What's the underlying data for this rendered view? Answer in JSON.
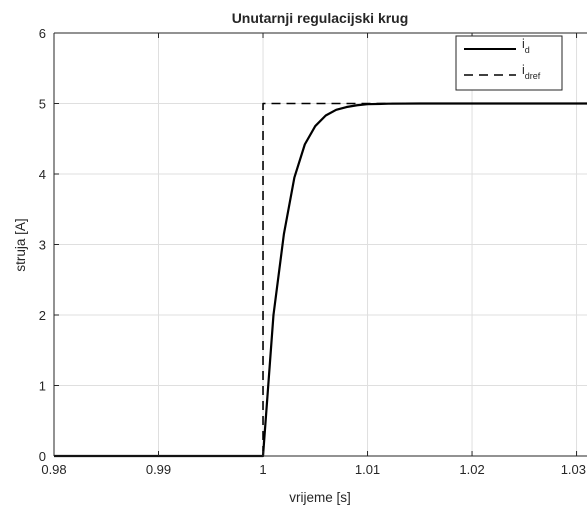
{
  "chart_data": {
    "type": "line",
    "title": "Unutarnji regulacijski krug",
    "xlabel": "vrijeme [s]",
    "ylabel": "struja [A]",
    "xlim": [
      0.98,
      1.031
    ],
    "ylim": [
      0,
      6
    ],
    "xticks": [
      0.98,
      0.99,
      1,
      1.01,
      1.02,
      1.03
    ],
    "xtick_labels": [
      "0.98",
      "0.99",
      "1",
      "1.01",
      "1.02",
      "1.03"
    ],
    "yticks": [
      0,
      1,
      2,
      3,
      4,
      5,
      6
    ],
    "ytick_labels": [
      "0",
      "1",
      "2",
      "3",
      "4",
      "5",
      "6"
    ],
    "grid": true,
    "legend_position": "top-right",
    "series": [
      {
        "name": "i",
        "subscript": "d",
        "style": "solid",
        "color": "#000000",
        "x": [
          0.98,
          1.0,
          1.001,
          1.002,
          1.003,
          1.004,
          1.005,
          1.006,
          1.007,
          1.008,
          1.009,
          1.01,
          1.012,
          1.015,
          1.02,
          1.025,
          1.031
        ],
        "y": [
          0,
          0,
          2.0,
          3.15,
          3.95,
          4.42,
          4.68,
          4.83,
          4.91,
          4.95,
          4.975,
          4.99,
          4.997,
          5.0,
          5.0,
          5.0,
          5.0
        ]
      },
      {
        "name": "i",
        "subscript": "dref",
        "style": "dashed",
        "color": "#000000",
        "x": [
          0.98,
          1.0,
          1.0,
          1.031
        ],
        "y": [
          0,
          0,
          5,
          5
        ]
      }
    ]
  }
}
